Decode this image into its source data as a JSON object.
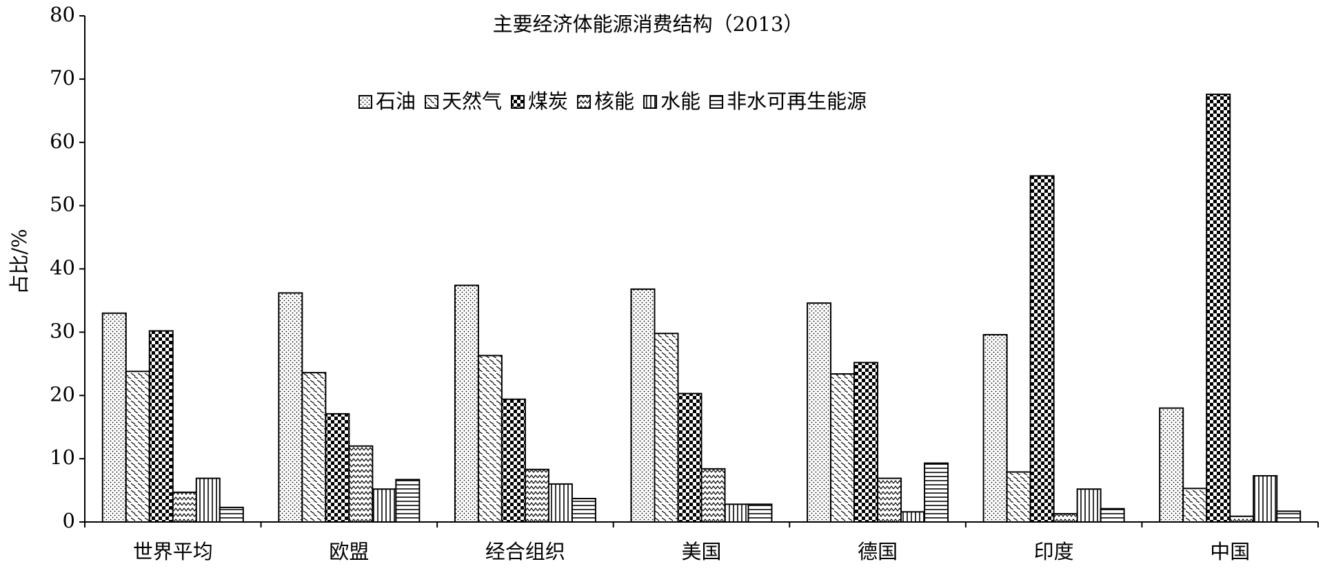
{
  "chart_data": {
    "type": "bar",
    "title": "主要经济体能源消费结构（2013）",
    "y_label": "占比/%",
    "categories": [
      "世界平均",
      "欧盟",
      "经合组织",
      "美国",
      "德国",
      "印度",
      "中国"
    ],
    "series": [
      {
        "name": "石油",
        "color": "#000000",
        "values": [
          33,
          36.2,
          37.4,
          36.8,
          34.6,
          29.6,
          18
        ]
      },
      {
        "name": "天然气",
        "color": "#000000",
        "values": [
          23.8,
          23.6,
          26.3,
          29.8,
          23.4,
          7.9,
          5.3
        ]
      },
      {
        "name": "煤炭",
        "color": "#000000",
        "values": [
          30.2,
          17.1,
          19.4,
          20.3,
          25.2,
          54.7,
          67.6
        ]
      },
      {
        "name": "核能",
        "color": "#000000",
        "values": [
          4.7,
          12,
          8.3,
          8.4,
          6.9,
          1.3,
          0.9
        ]
      },
      {
        "name": "水能",
        "color": "#000000",
        "values": [
          6.9,
          5.2,
          6,
          2.8,
          1.6,
          5.2,
          7.3
        ]
      },
      {
        "name": "非水可再生能源",
        "color": "#000000",
        "values": [
          2.3,
          6.7,
          3.7,
          2.8,
          9.3,
          2.1,
          1.7
        ]
      }
    ],
    "ylim": [
      0,
      80
    ],
    "yticks": [
      0,
      10,
      20,
      30,
      40,
      50,
      60,
      70,
      80
    ]
  }
}
